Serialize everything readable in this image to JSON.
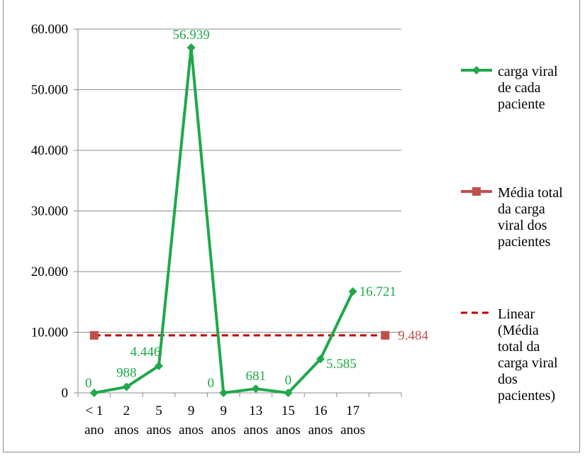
{
  "chart_data": {
    "type": "line",
    "categories": [
      [
        "< 1",
        "ano"
      ],
      [
        "2",
        "anos"
      ],
      [
        "5",
        "anos"
      ],
      [
        "9",
        "anos"
      ],
      [
        "9",
        "anos"
      ],
      [
        "13",
        "anos"
      ],
      [
        "15",
        "anos"
      ],
      [
        "16",
        "anos"
      ],
      [
        "17",
        "anos"
      ],
      [
        "",
        ""
      ]
    ],
    "ylim": [
      0,
      60000
    ],
    "yticks": [
      0,
      10000,
      20000,
      30000,
      40000,
      50000,
      60000
    ],
    "ytick_labels": [
      "0",
      "10.000",
      "20.000",
      "30.000",
      "40.000",
      "50.000",
      "60.000"
    ],
    "grid": true,
    "legend_position": "right",
    "series": [
      {
        "name": "carga viral de cada paciente",
        "legend_lines": [
          "carga viral",
          "de cada",
          "paciente"
        ],
        "color": "#1fa84a",
        "marker": "diamond",
        "values": [
          0,
          988,
          4446,
          56939,
          0,
          681,
          0,
          5585,
          16721,
          null
        ],
        "labels": [
          "0",
          "988",
          "4.446",
          "56.939",
          "0",
          "681",
          "0",
          "5.585",
          "16.721",
          ""
        ]
      },
      {
        "name": "Média total da carga viral dos pacientes",
        "legend_lines": [
          "Média total",
          "da carga",
          "viral dos",
          "pacientes"
        ],
        "color": "#c0504d",
        "marker": "square",
        "values": [
          9484,
          null,
          null,
          null,
          null,
          null,
          null,
          null,
          null,
          9484
        ],
        "labels": [
          "",
          "",
          "",
          "",
          "",
          "",
          "",
          "",
          "",
          "9.484"
        ]
      },
      {
        "name": "Linear (Média total da carga viral dos pacientes)",
        "legend_lines": [
          "Linear",
          "(Média",
          "total da",
          "carga viral",
          "dos",
          "pacientes)"
        ],
        "color": "#c00000",
        "style": "dashed",
        "values": [
          9484,
          9484,
          9484,
          9484,
          9484,
          9484,
          9484,
          9484,
          9484,
          9484
        ]
      }
    ]
  }
}
